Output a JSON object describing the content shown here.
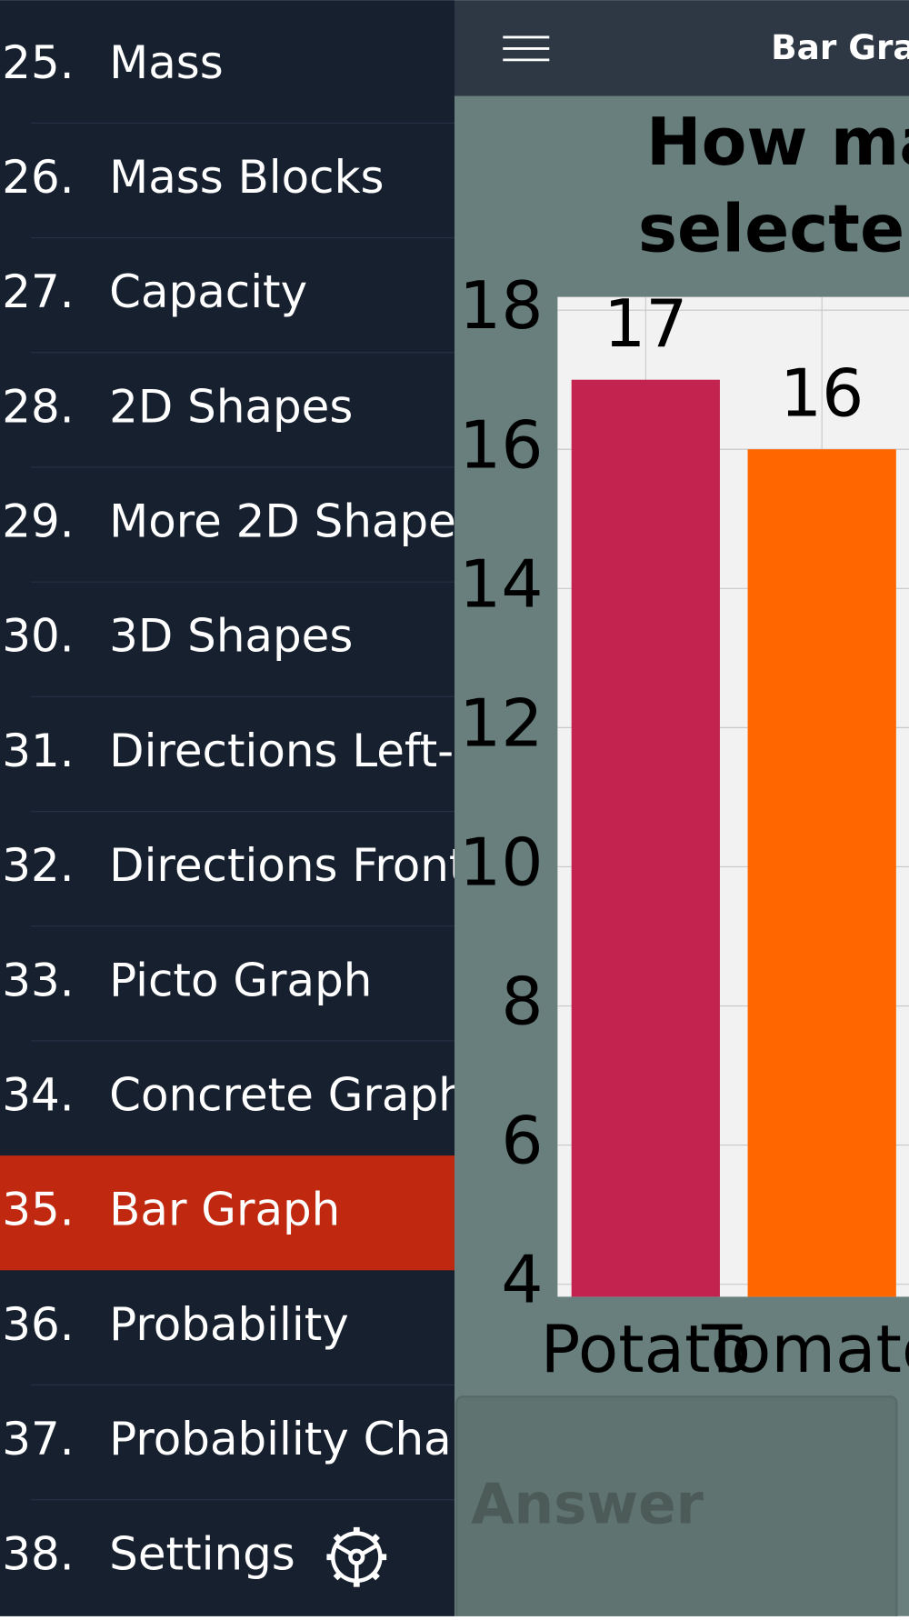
{
  "menu": {
    "items": [
      {
        "number": "25.",
        "label": "Mass"
      },
      {
        "number": "26.",
        "label": "Mass Blocks"
      },
      {
        "number": "27.",
        "label": "Capacity"
      },
      {
        "number": "28.",
        "label": "2D Shapes"
      },
      {
        "number": "29.",
        "label": "More 2D Shape"
      },
      {
        "number": "30.",
        "label": "3D Shapes"
      },
      {
        "number": "31.",
        "label": "Directions Left-"
      },
      {
        "number": "32.",
        "label": "Directions Front"
      },
      {
        "number": "33.",
        "label": "Picto Graph"
      },
      {
        "number": "34.",
        "label": "Concrete Graph"
      },
      {
        "number": "35.",
        "label": "Bar Graph"
      },
      {
        "number": "36.",
        "label": "Probability"
      },
      {
        "number": "37.",
        "label": "Probability Char"
      },
      {
        "number": "38.",
        "label": "Settings"
      }
    ],
    "selected": 10
  },
  "header": {
    "title": "Bar Grap"
  },
  "chart_data": {
    "type": "bar",
    "title_lines": [
      "How ma",
      "selecte"
    ],
    "categories": [
      "Potato",
      "Tomato"
    ],
    "values": [
      17,
      16
    ],
    "colors": [
      "#c2244f",
      "#ff6600"
    ],
    "ylim": [
      3.82,
      18.19
    ],
    "yticks": [
      4,
      6,
      8,
      10,
      12,
      14,
      16,
      18
    ],
    "grid": true
  },
  "answer": {
    "placeholder": "Answer"
  }
}
